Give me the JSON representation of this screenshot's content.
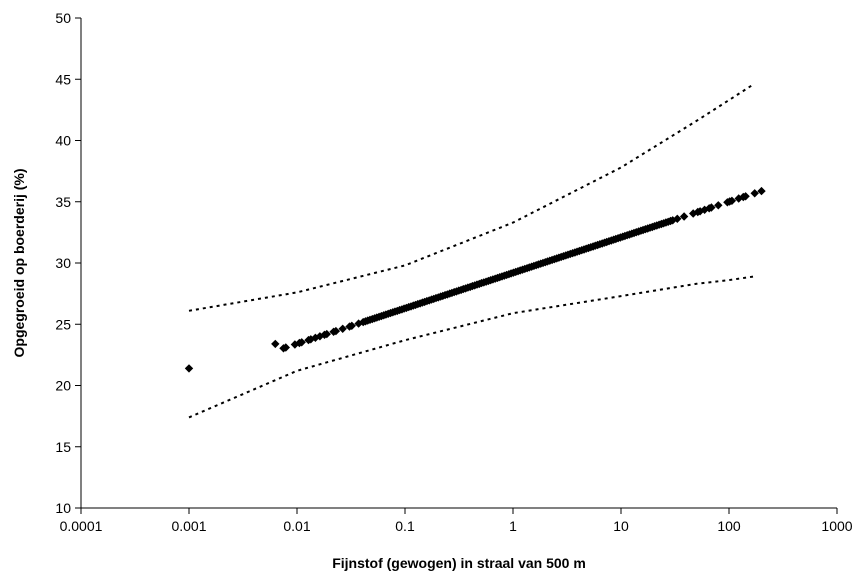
{
  "chart_data": {
    "type": "scatter",
    "title": "",
    "xlabel": "Fijnstof (gewogen) in straal van 500 m",
    "ylabel": "Opgegroeid op boerderij (%)",
    "x_scale": "log",
    "xlim": [
      0.0001,
      1000
    ],
    "ylim": [
      10,
      50
    ],
    "x_ticks": [
      "0.0001",
      "0.001",
      "0.01",
      "0.1",
      "1",
      "10",
      "100",
      "1000"
    ],
    "y_ticks": [
      "10",
      "15",
      "20",
      "25",
      "30",
      "35",
      "40",
      "45",
      "50"
    ],
    "grid": false,
    "legend": "none",
    "fit": {
      "intercept": 29.2,
      "slope_per_decade": 2.9,
      "x_range": [
        0.001,
        200
      ],
      "marker": "diamond"
    },
    "points": [
      {
        "x": 0.001,
        "y": 21.4
      },
      {
        "x": 0.0063,
        "y": 23.4
      }
    ],
    "upper_ci": {
      "x": [
        0.001,
        0.01,
        0.1,
        1,
        10,
        50,
        100,
        170
      ],
      "y": [
        26.1,
        27.6,
        29.8,
        33.3,
        37.8,
        41.6,
        43.3,
        44.6
      ]
    },
    "lower_ci": {
      "x": [
        0.001,
        0.01,
        0.1,
        1,
        10,
        50,
        100,
        170
      ],
      "y": [
        17.4,
        21.2,
        23.7,
        25.9,
        27.3,
        28.3,
        28.6,
        28.9
      ]
    },
    "colors": {
      "marker": "#000000",
      "ci": "#000000",
      "axis": "#000000"
    }
  }
}
